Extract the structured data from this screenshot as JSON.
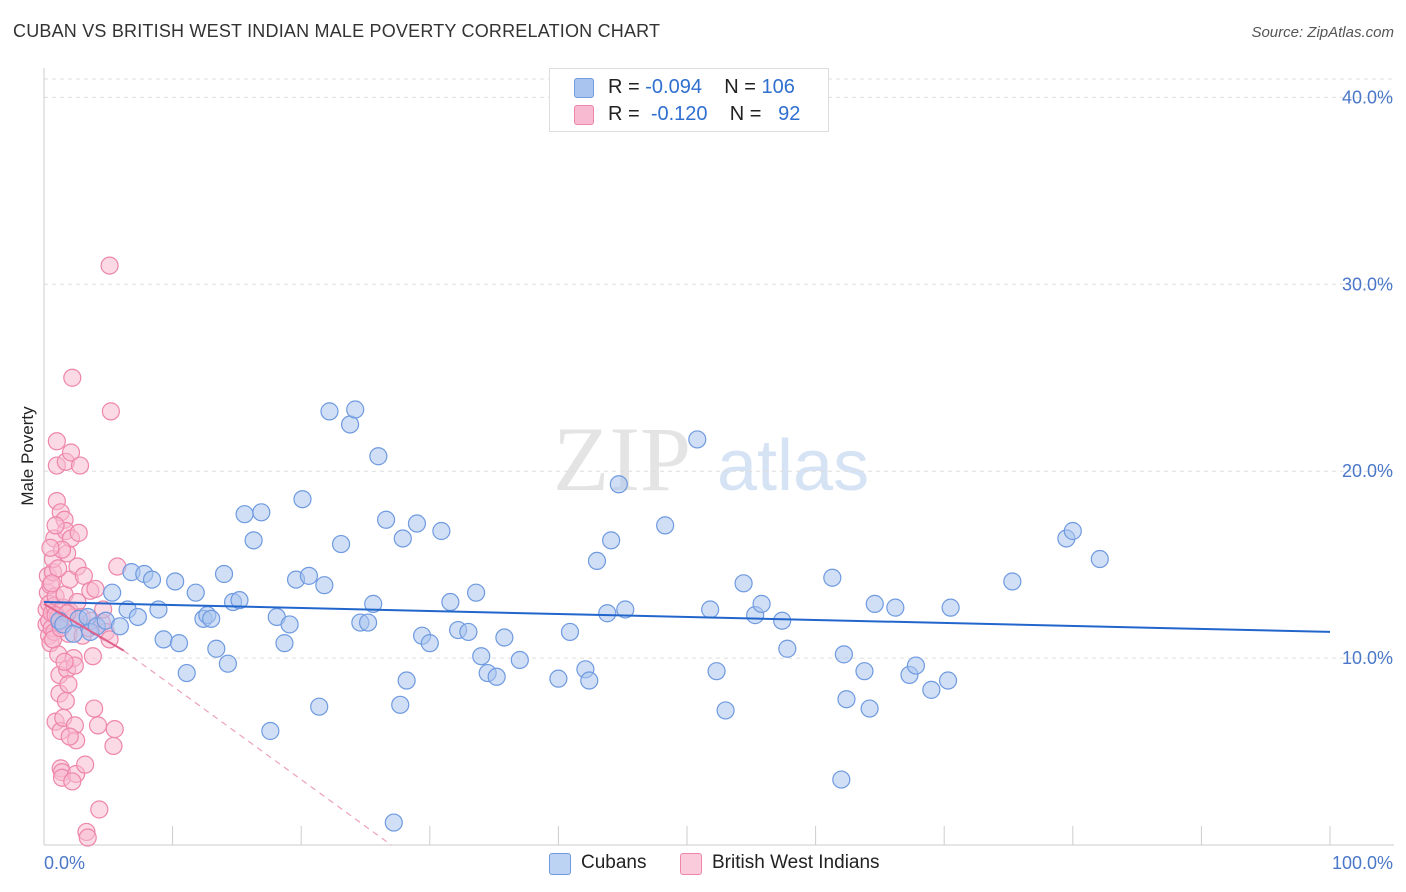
{
  "title": "CUBAN VS BRITISH WEST INDIAN MALE POVERTY CORRELATION CHART",
  "source": "Source: ZipAtlas.com",
  "watermark": {
    "zip": "ZIP",
    "atlas": "atlas"
  },
  "legend": {
    "r_label": "R =",
    "n_label": "N =",
    "rows": [
      {
        "r": "-0.094",
        "n": "106",
        "color": "#a9c4ee",
        "border": "#6f9ae0"
      },
      {
        "r": "-0.120",
        "n": "92",
        "color": "#f7bad0",
        "border": "#ee86aa"
      }
    ]
  },
  "bottom_legend": [
    "Cubans",
    "British West Indians"
  ],
  "chart_data": {
    "type": "scatter",
    "title": "CUBAN VS BRITISH WEST INDIAN MALE POVERTY CORRELATION CHART",
    "xlabel": "",
    "ylabel": "Male Poverty",
    "xlim": [
      0,
      100
    ],
    "ylim": [
      0,
      42
    ],
    "x_tick_labels": [
      {
        "value": 0,
        "label": "0.0%"
      },
      {
        "value": 100,
        "label": "100.0%"
      }
    ],
    "y_tick_labels": [
      {
        "value": 10,
        "label": "10.0%"
      },
      {
        "value": 20,
        "label": "20.0%"
      },
      {
        "value": 30,
        "label": "30.0%"
      },
      {
        "value": 40,
        "label": "40.0%"
      }
    ],
    "series": [
      {
        "name": "Cubans",
        "color": "#6f9ae0",
        "fill": "#a9c4ee",
        "trend": {
          "x0": 0,
          "y0": 13.0,
          "x1": 100,
          "y1": 11.4,
          "color": "#2266cc",
          "style": "solid"
        },
        "points": [
          [
            1.2,
            12.0
          ],
          [
            1.5,
            11.8
          ],
          [
            2.3,
            11.3
          ],
          [
            2.7,
            12.1
          ],
          [
            3.4,
            12.2
          ],
          [
            3.6,
            11.4
          ],
          [
            4.1,
            11.7
          ],
          [
            4.8,
            12.0
          ],
          [
            5.3,
            13.5
          ],
          [
            5.9,
            11.7
          ],
          [
            6.5,
            12.6
          ],
          [
            6.8,
            14.6
          ],
          [
            7.3,
            12.2
          ],
          [
            7.8,
            14.5
          ],
          [
            8.4,
            14.2
          ],
          [
            8.9,
            12.6
          ],
          [
            9.3,
            11.0
          ],
          [
            10.2,
            14.1
          ],
          [
            10.5,
            10.8
          ],
          [
            11.1,
            9.2
          ],
          [
            11.8,
            13.5
          ],
          [
            12.4,
            12.1
          ],
          [
            12.7,
            12.3
          ],
          [
            13.0,
            12.1
          ],
          [
            13.4,
            10.5
          ],
          [
            14.0,
            14.5
          ],
          [
            14.3,
            9.7
          ],
          [
            14.7,
            13.0
          ],
          [
            15.2,
            13.1
          ],
          [
            15.6,
            17.7
          ],
          [
            16.3,
            16.3
          ],
          [
            16.9,
            17.8
          ],
          [
            17.6,
            6.1
          ],
          [
            18.1,
            12.2
          ],
          [
            18.7,
            10.8
          ],
          [
            19.1,
            11.8
          ],
          [
            19.6,
            14.2
          ],
          [
            20.1,
            18.5
          ],
          [
            20.6,
            14.4
          ],
          [
            21.4,
            7.4
          ],
          [
            21.8,
            13.9
          ],
          [
            22.2,
            23.2
          ],
          [
            23.1,
            16.1
          ],
          [
            23.8,
            22.5
          ],
          [
            24.2,
            23.3
          ],
          [
            24.6,
            11.9
          ],
          [
            25.2,
            11.9
          ],
          [
            25.6,
            12.9
          ],
          [
            26.0,
            20.8
          ],
          [
            26.6,
            17.4
          ],
          [
            27.7,
            7.5
          ],
          [
            27.9,
            16.4
          ],
          [
            28.2,
            8.8
          ],
          [
            29.0,
            17.2
          ],
          [
            29.4,
            11.2
          ],
          [
            30.0,
            10.8
          ],
          [
            30.9,
            16.8
          ],
          [
            31.6,
            13.0
          ],
          [
            32.2,
            11.5
          ],
          [
            33.0,
            11.4
          ],
          [
            33.6,
            13.5
          ],
          [
            34.0,
            10.1
          ],
          [
            34.5,
            9.2
          ],
          [
            35.2,
            9.0
          ],
          [
            35.8,
            11.1
          ],
          [
            37.0,
            9.9
          ],
          [
            40.0,
            8.9
          ],
          [
            40.9,
            11.4
          ],
          [
            42.1,
            9.4
          ],
          [
            42.4,
            8.8
          ],
          [
            43.0,
            15.2
          ],
          [
            43.8,
            12.4
          ],
          [
            44.1,
            16.3
          ],
          [
            44.7,
            19.3
          ],
          [
            45.2,
            12.6
          ],
          [
            48.3,
            17.1
          ],
          [
            50.8,
            21.7
          ],
          [
            51.8,
            12.6
          ],
          [
            52.3,
            9.3
          ],
          [
            53.0,
            7.2
          ],
          [
            54.4,
            14.0
          ],
          [
            55.3,
            12.3
          ],
          [
            55.8,
            12.9
          ],
          [
            57.4,
            12.0
          ],
          [
            57.8,
            10.5
          ],
          [
            61.3,
            14.3
          ],
          [
            62.0,
            3.5
          ],
          [
            62.2,
            10.2
          ],
          [
            62.4,
            7.8
          ],
          [
            63.8,
            9.3
          ],
          [
            64.2,
            7.3
          ],
          [
            64.6,
            12.9
          ],
          [
            66.2,
            12.7
          ],
          [
            67.3,
            9.1
          ],
          [
            67.8,
            9.6
          ],
          [
            69.0,
            8.3
          ],
          [
            70.3,
            8.8
          ],
          [
            70.5,
            12.7
          ],
          [
            75.3,
            14.1
          ],
          [
            79.5,
            16.4
          ],
          [
            80.0,
            16.8
          ],
          [
            82.1,
            15.3
          ],
          [
            27.2,
            1.2
          ]
        ]
      },
      {
        "name": "British West Indians",
        "color": "#ee86aa",
        "fill": "#f7bad0",
        "trend": {
          "x0": 0,
          "y0": 12.9,
          "x1": 6.2,
          "y1": 10.4,
          "color": "#e0608c",
          "style": "solid",
          "extension": {
            "x1": 27.0,
            "y1": 0.0,
            "style": "dashed"
          }
        },
        "points": [
          [
            0.2,
            11.8
          ],
          [
            0.2,
            12.6
          ],
          [
            0.3,
            13.5
          ],
          [
            0.3,
            14.4
          ],
          [
            0.4,
            11.2
          ],
          [
            0.4,
            12.0
          ],
          [
            0.4,
            12.9
          ],
          [
            0.5,
            10.8
          ],
          [
            0.5,
            13.9
          ],
          [
            0.6,
            11.6
          ],
          [
            0.6,
            12.4
          ],
          [
            0.7,
            14.6
          ],
          [
            0.7,
            15.3
          ],
          [
            0.8,
            16.4
          ],
          [
            0.8,
            11.4
          ],
          [
            0.8,
            12.8
          ],
          [
            0.9,
            13.3
          ],
          [
            0.9,
            6.6
          ],
          [
            1.0,
            20.3
          ],
          [
            1.0,
            21.6
          ],
          [
            1.0,
            18.4
          ],
          [
            1.1,
            10.2
          ],
          [
            1.1,
            12.2
          ],
          [
            1.2,
            8.1
          ],
          [
            1.2,
            9.1
          ],
          [
            1.2,
            11.9
          ],
          [
            1.3,
            17.8
          ],
          [
            1.3,
            6.1
          ],
          [
            1.3,
            4.1
          ],
          [
            1.4,
            3.9
          ],
          [
            1.4,
            3.6
          ],
          [
            1.5,
            6.8
          ],
          [
            1.5,
            12.7
          ],
          [
            1.6,
            13.4
          ],
          [
            1.6,
            17.4
          ],
          [
            1.7,
            20.5
          ],
          [
            1.7,
            16.8
          ],
          [
            1.8,
            15.6
          ],
          [
            1.8,
            9.4
          ],
          [
            1.9,
            8.6
          ],
          [
            1.9,
            11.3
          ],
          [
            2.0,
            12.5
          ],
          [
            2.0,
            14.2
          ],
          [
            2.1,
            16.4
          ],
          [
            2.1,
            21.0
          ],
          [
            2.2,
            25.0
          ],
          [
            2.3,
            12.2
          ],
          [
            2.3,
            10.0
          ],
          [
            2.4,
            9.6
          ],
          [
            2.4,
            6.4
          ],
          [
            2.5,
            5.6
          ],
          [
            2.5,
            3.8
          ],
          [
            2.6,
            13.0
          ],
          [
            2.6,
            14.9
          ],
          [
            2.7,
            16.7
          ],
          [
            2.8,
            20.3
          ],
          [
            2.9,
            12.2
          ],
          [
            3.0,
            11.2
          ],
          [
            3.1,
            14.4
          ],
          [
            3.2,
            4.3
          ],
          [
            3.3,
            0.7
          ],
          [
            3.4,
            0.4
          ],
          [
            3.5,
            11.6
          ],
          [
            3.6,
            13.6
          ],
          [
            3.7,
            12.0
          ],
          [
            3.8,
            10.1
          ],
          [
            3.9,
            7.3
          ],
          [
            4.0,
            13.7
          ],
          [
            4.2,
            6.4
          ],
          [
            4.3,
            1.9
          ],
          [
            4.5,
            11.9
          ],
          [
            4.6,
            12.6
          ],
          [
            4.8,
            11.4
          ],
          [
            5.1,
            11.0
          ],
          [
            5.2,
            23.2
          ],
          [
            5.4,
            5.3
          ],
          [
            5.5,
            6.2
          ],
          [
            5.7,
            14.9
          ],
          [
            5.1,
            31.0
          ],
          [
            0.9,
            12.3
          ],
          [
            1.1,
            14.8
          ],
          [
            1.4,
            15.8
          ],
          [
            1.6,
            9.8
          ],
          [
            1.7,
            7.7
          ],
          [
            2.0,
            5.8
          ],
          [
            2.2,
            3.4
          ],
          [
            0.5,
            15.9
          ],
          [
            0.6,
            14.0
          ],
          [
            0.7,
            11.0
          ],
          [
            0.9,
            17.1
          ],
          [
            1.3,
            11.6
          ],
          [
            1.8,
            12.4
          ]
        ]
      }
    ]
  }
}
